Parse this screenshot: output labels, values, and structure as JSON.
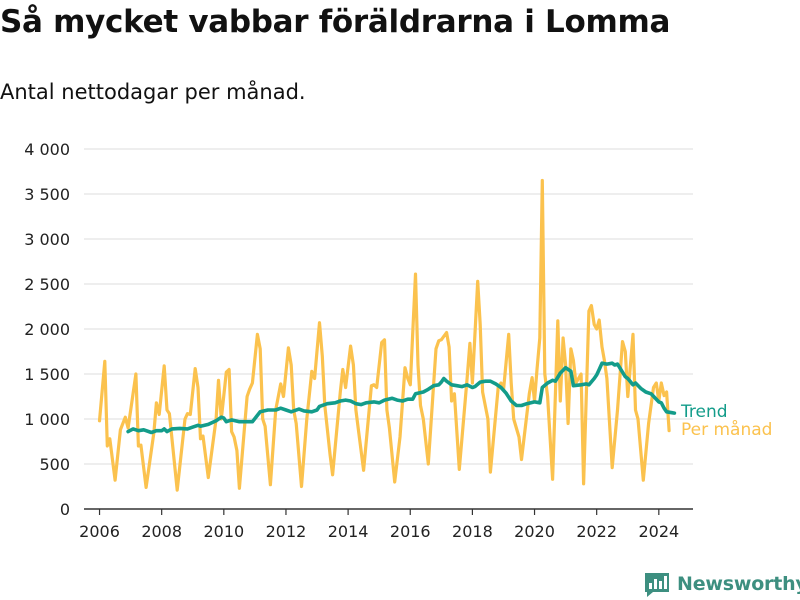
{
  "header": {
    "title": "Så mycket vabbar föräldrarna i Lomma",
    "subtitle": "Antal nettodagar per månad."
  },
  "brand": {
    "name": "Newsworthy"
  },
  "colors": {
    "per_month": "#FBC24E",
    "trend": "#139C8A",
    "grid": "#dcdcdc"
  },
  "chart_data": {
    "type": "line",
    "title": "Så mycket vabbar föräldrarna i Lomma",
    "subtitle": "Antal nettodagar per månad.",
    "xlabel": "",
    "ylabel": "",
    "xlim": [
      2005.5,
      2025.1
    ],
    "ylim": [
      0,
      4000
    ],
    "grid": true,
    "legend": "inline labels at line ends",
    "x_ticks": [
      2006,
      2008,
      2010,
      2012,
      2014,
      2016,
      2018,
      2020,
      2022,
      2024
    ],
    "y_ticks": [
      0,
      500,
      1000,
      1500,
      2000,
      2500,
      3000,
      3500,
      4000
    ],
    "y_tick_labels": [
      "0",
      "500",
      "1 000",
      "1 500",
      "2 000",
      "2 500",
      "3 000",
      "3 500",
      "4 000"
    ],
    "series": [
      {
        "name": "Per månad",
        "color": "#FBC24E",
        "points": [
          [
            2006.0,
            980
          ],
          [
            2006.17,
            1640
          ],
          [
            2006.25,
            700
          ],
          [
            2006.33,
            780
          ],
          [
            2006.5,
            320
          ],
          [
            2006.67,
            880
          ],
          [
            2006.83,
            1020
          ],
          [
            2006.92,
            900
          ],
          [
            2007.17,
            1500
          ],
          [
            2007.25,
            700
          ],
          [
            2007.33,
            710
          ],
          [
            2007.5,
            240
          ],
          [
            2007.75,
            850
          ],
          [
            2007.83,
            1180
          ],
          [
            2007.92,
            1050
          ],
          [
            2008.08,
            1590
          ],
          [
            2008.17,
            1100
          ],
          [
            2008.25,
            1060
          ],
          [
            2008.5,
            210
          ],
          [
            2008.75,
            1000
          ],
          [
            2008.83,
            1060
          ],
          [
            2008.92,
            1050
          ],
          [
            2009.08,
            1560
          ],
          [
            2009.17,
            1350
          ],
          [
            2009.25,
            780
          ],
          [
            2009.33,
            810
          ],
          [
            2009.5,
            350
          ],
          [
            2009.75,
            1000
          ],
          [
            2009.83,
            1430
          ],
          [
            2009.92,
            1000
          ],
          [
            2010.08,
            1520
          ],
          [
            2010.17,
            1550
          ],
          [
            2010.25,
            860
          ],
          [
            2010.33,
            800
          ],
          [
            2010.42,
            650
          ],
          [
            2010.5,
            230
          ],
          [
            2010.75,
            1250
          ],
          [
            2010.83,
            1330
          ],
          [
            2010.92,
            1400
          ],
          [
            2011.08,
            1940
          ],
          [
            2011.17,
            1780
          ],
          [
            2011.25,
            1000
          ],
          [
            2011.33,
            920
          ],
          [
            2011.5,
            270
          ],
          [
            2011.67,
            1100
          ],
          [
            2011.83,
            1390
          ],
          [
            2011.92,
            1250
          ],
          [
            2012.08,
            1790
          ],
          [
            2012.17,
            1600
          ],
          [
            2012.25,
            1100
          ],
          [
            2012.33,
            950
          ],
          [
            2012.5,
            250
          ],
          [
            2012.67,
            1000
          ],
          [
            2012.83,
            1530
          ],
          [
            2012.92,
            1450
          ],
          [
            2013.08,
            2070
          ],
          [
            2013.17,
            1700
          ],
          [
            2013.25,
            1150
          ],
          [
            2013.42,
            600
          ],
          [
            2013.5,
            380
          ],
          [
            2013.75,
            1300
          ],
          [
            2013.83,
            1550
          ],
          [
            2013.92,
            1350
          ],
          [
            2014.08,
            1810
          ],
          [
            2014.17,
            1600
          ],
          [
            2014.25,
            1100
          ],
          [
            2014.33,
            880
          ],
          [
            2014.5,
            430
          ],
          [
            2014.75,
            1370
          ],
          [
            2014.83,
            1380
          ],
          [
            2014.92,
            1350
          ],
          [
            2015.08,
            1850
          ],
          [
            2015.17,
            1880
          ],
          [
            2015.25,
            1100
          ],
          [
            2015.33,
            900
          ],
          [
            2015.5,
            300
          ],
          [
            2015.67,
            800
          ],
          [
            2015.83,
            1570
          ],
          [
            2015.92,
            1450
          ],
          [
            2016.0,
            1380
          ],
          [
            2016.17,
            2610
          ],
          [
            2016.25,
            1600
          ],
          [
            2016.33,
            1150
          ],
          [
            2016.42,
            1000
          ],
          [
            2016.58,
            500
          ],
          [
            2016.83,
            1780
          ],
          [
            2016.92,
            1870
          ],
          [
            2017.0,
            1880
          ],
          [
            2017.17,
            1960
          ],
          [
            2017.25,
            1800
          ],
          [
            2017.33,
            1200
          ],
          [
            2017.42,
            1280
          ],
          [
            2017.58,
            440
          ],
          [
            2017.83,
            1450
          ],
          [
            2017.92,
            1840
          ],
          [
            2018.0,
            1400
          ],
          [
            2018.17,
            2530
          ],
          [
            2018.25,
            2050
          ],
          [
            2018.33,
            1300
          ],
          [
            2018.5,
            1000
          ],
          [
            2018.58,
            410
          ],
          [
            2018.83,
            1350
          ],
          [
            2018.92,
            1400
          ],
          [
            2019.0,
            1320
          ],
          [
            2019.17,
            1940
          ],
          [
            2019.25,
            1400
          ],
          [
            2019.33,
            1000
          ],
          [
            2019.5,
            800
          ],
          [
            2019.58,
            550
          ],
          [
            2019.83,
            1280
          ],
          [
            2019.92,
            1460
          ],
          [
            2020.0,
            1200
          ],
          [
            2020.08,
            1550
          ],
          [
            2020.17,
            1900
          ],
          [
            2020.25,
            3650
          ],
          [
            2020.33,
            1500
          ],
          [
            2020.42,
            1250
          ],
          [
            2020.58,
            330
          ],
          [
            2020.75,
            2090
          ],
          [
            2020.83,
            1200
          ],
          [
            2020.92,
            1900
          ],
          [
            2021.0,
            1600
          ],
          [
            2021.08,
            950
          ],
          [
            2021.17,
            1780
          ],
          [
            2021.25,
            1650
          ],
          [
            2021.33,
            1400
          ],
          [
            2021.5,
            1500
          ],
          [
            2021.58,
            280
          ],
          [
            2021.75,
            2200
          ],
          [
            2021.83,
            2260
          ],
          [
            2021.92,
            2050
          ],
          [
            2022.0,
            2000
          ],
          [
            2022.08,
            2100
          ],
          [
            2022.17,
            1800
          ],
          [
            2022.25,
            1650
          ],
          [
            2022.33,
            1450
          ],
          [
            2022.5,
            460
          ],
          [
            2022.67,
            1100
          ],
          [
            2022.83,
            1860
          ],
          [
            2022.92,
            1750
          ],
          [
            2023.0,
            1250
          ],
          [
            2023.17,
            1940
          ],
          [
            2023.25,
            1100
          ],
          [
            2023.33,
            1000
          ],
          [
            2023.5,
            320
          ],
          [
            2023.67,
            950
          ],
          [
            2023.83,
            1350
          ],
          [
            2023.92,
            1400
          ],
          [
            2024.0,
            1200
          ],
          [
            2024.08,
            1400
          ],
          [
            2024.17,
            1260
          ],
          [
            2024.25,
            1300
          ],
          [
            2024.33,
            870
          ]
        ]
      },
      {
        "name": "Trend",
        "color": "#139C8A",
        "points": [
          [
            2006.92,
            860
          ],
          [
            2007.08,
            890
          ],
          [
            2007.25,
            870
          ],
          [
            2007.42,
            880
          ],
          [
            2007.67,
            850
          ],
          [
            2007.83,
            870
          ],
          [
            2008.0,
            870
          ],
          [
            2008.08,
            890
          ],
          [
            2008.17,
            860
          ],
          [
            2008.33,
            890
          ],
          [
            2008.58,
            895
          ],
          [
            2008.83,
            890
          ],
          [
            2009.0,
            910
          ],
          [
            2009.17,
            930
          ],
          [
            2009.25,
            920
          ],
          [
            2009.5,
            940
          ],
          [
            2009.75,
            980
          ],
          [
            2009.92,
            1020
          ],
          [
            2010.0,
            1010
          ],
          [
            2010.08,
            970
          ],
          [
            2010.25,
            990
          ],
          [
            2010.5,
            970
          ],
          [
            2010.75,
            970
          ],
          [
            2010.92,
            970
          ],
          [
            2011.17,
            1080
          ],
          [
            2011.42,
            1100
          ],
          [
            2011.67,
            1100
          ],
          [
            2011.83,
            1120
          ],
          [
            2012.0,
            1100
          ],
          [
            2012.17,
            1080
          ],
          [
            2012.42,
            1110
          ],
          [
            2012.58,
            1090
          ],
          [
            2012.83,
            1080
          ],
          [
            2013.0,
            1100
          ],
          [
            2013.08,
            1140
          ],
          [
            2013.33,
            1170
          ],
          [
            2013.58,
            1180
          ],
          [
            2013.75,
            1200
          ],
          [
            2013.92,
            1210
          ],
          [
            2014.08,
            1200
          ],
          [
            2014.25,
            1170
          ],
          [
            2014.42,
            1160
          ],
          [
            2014.58,
            1180
          ],
          [
            2014.83,
            1190
          ],
          [
            2015.0,
            1180
          ],
          [
            2015.17,
            1210
          ],
          [
            2015.42,
            1230
          ],
          [
            2015.58,
            1210
          ],
          [
            2015.75,
            1200
          ],
          [
            2015.92,
            1220
          ],
          [
            2016.08,
            1220
          ],
          [
            2016.17,
            1280
          ],
          [
            2016.42,
            1300
          ],
          [
            2016.58,
            1330
          ],
          [
            2016.75,
            1370
          ],
          [
            2016.92,
            1380
          ],
          [
            2017.0,
            1410
          ],
          [
            2017.08,
            1450
          ],
          [
            2017.17,
            1420
          ],
          [
            2017.33,
            1380
          ],
          [
            2017.5,
            1370
          ],
          [
            2017.67,
            1360
          ],
          [
            2017.83,
            1380
          ],
          [
            2018.0,
            1350
          ],
          [
            2018.08,
            1360
          ],
          [
            2018.25,
            1410
          ],
          [
            2018.42,
            1420
          ],
          [
            2018.58,
            1420
          ],
          [
            2018.75,
            1390
          ],
          [
            2018.92,
            1350
          ],
          [
            2019.08,
            1290
          ],
          [
            2019.25,
            1200
          ],
          [
            2019.42,
            1150
          ],
          [
            2019.58,
            1150
          ],
          [
            2019.75,
            1170
          ],
          [
            2020.0,
            1190
          ],
          [
            2020.17,
            1180
          ],
          [
            2020.25,
            1350
          ],
          [
            2020.42,
            1400
          ],
          [
            2020.58,
            1430
          ],
          [
            2020.67,
            1420
          ],
          [
            2020.83,
            1510
          ],
          [
            2021.0,
            1570
          ],
          [
            2021.17,
            1530
          ],
          [
            2021.25,
            1370
          ],
          [
            2021.5,
            1380
          ],
          [
            2021.67,
            1390
          ],
          [
            2021.75,
            1380
          ],
          [
            2021.92,
            1450
          ],
          [
            2022.0,
            1490
          ],
          [
            2022.08,
            1550
          ],
          [
            2022.17,
            1620
          ],
          [
            2022.33,
            1610
          ],
          [
            2022.5,
            1620
          ],
          [
            2022.58,
            1600
          ],
          [
            2022.67,
            1610
          ],
          [
            2022.83,
            1520
          ],
          [
            2022.92,
            1470
          ],
          [
            2023.0,
            1450
          ],
          [
            2023.17,
            1380
          ],
          [
            2023.25,
            1400
          ],
          [
            2023.42,
            1340
          ],
          [
            2023.58,
            1300
          ],
          [
            2023.75,
            1280
          ],
          [
            2023.92,
            1220
          ],
          [
            2024.0,
            1190
          ],
          [
            2024.08,
            1180
          ],
          [
            2024.17,
            1120
          ],
          [
            2024.25,
            1080
          ],
          [
            2024.42,
            1070
          ],
          [
            2024.5,
            1065
          ]
        ]
      }
    ]
  }
}
